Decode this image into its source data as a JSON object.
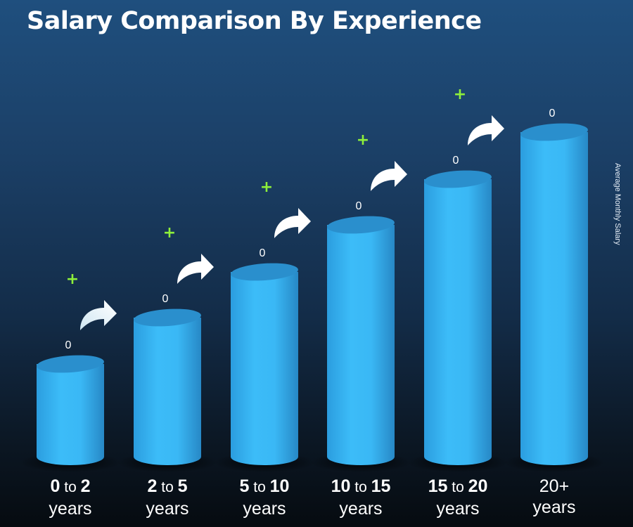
{
  "chart_data": {
    "type": "bar",
    "title": "Salary Comparison By Experience",
    "ylabel": "Average Monthly Salary",
    "categories": [
      "0 to 2 years",
      "2 to 5 years",
      "5 to 10 years",
      "10 to 15 years",
      "15 to 20 years",
      "20+ years"
    ],
    "category_labels": [
      {
        "from": "0",
        "to": "2",
        "joiner": "to",
        "unit": "years"
      },
      {
        "from": "2",
        "to": "5",
        "joiner": "to",
        "unit": "years"
      },
      {
        "from": "5",
        "to": "10",
        "joiner": "to",
        "unit": "years"
      },
      {
        "from": "10",
        "to": "15",
        "joiner": "to",
        "unit": "years"
      },
      {
        "from": "15",
        "to": "20",
        "joiner": "to",
        "unit": "years"
      },
      {
        "from": "20+",
        "to": "",
        "joiner": "",
        "unit": "years"
      }
    ],
    "values": [
      0,
      0,
      0,
      0,
      0,
      0
    ],
    "value_labels": [
      "0",
      "0",
      "0",
      "0",
      "0",
      "0"
    ],
    "increase_marker": "+",
    "icons": [
      "curved-arrow-icon",
      "plus-icon"
    ],
    "colors": {
      "bar": "#3ab8f5",
      "bar_top": "#2a8fcd",
      "arrow": "#ffffff",
      "plus": "#8ef03a"
    }
  }
}
